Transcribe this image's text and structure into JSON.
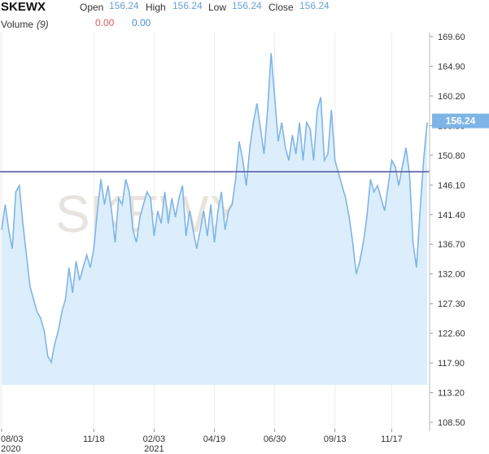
{
  "legend": {
    "symbol": "SKEWX",
    "open_label": "Open",
    "open": "156.24",
    "high_label": "High",
    "high": "156.24",
    "low_label": "Low",
    "low": "156.24",
    "close_label": "Close",
    "close": "156.24",
    "volume_label": "Volume",
    "volume_period": "(9)",
    "volume_value_1": "0.00",
    "volume_value_2": "0.00"
  },
  "watermark": "SKEWX",
  "colors": {
    "line": "#7fb5e6",
    "area": "#dceefc",
    "reference_line": "#5b5ea6",
    "price_tag": "#7fb5e6",
    "volume_red": "#e05a5a",
    "volume_blue": "#4a8fd8"
  },
  "chart_data": {
    "type": "area",
    "ylim": [
      106.0,
      172.0
    ],
    "yticks": [
      "169.60",
      "164.90",
      "160.20",
      "155.50",
      "150.80",
      "146.10",
      "141.40",
      "136.70",
      "132.00",
      "127.30",
      "122.60",
      "117.90",
      "113.20",
      "108.50"
    ],
    "xticks": [
      {
        "label": "08/03",
        "sub": "2020",
        "x": 0
      },
      {
        "label": "11/18",
        "sub": "",
        "x": 26
      },
      {
        "label": "02/03",
        "sub": "2021",
        "x": 43
      },
      {
        "label": "04/19",
        "sub": "",
        "x": 60
      },
      {
        "label": "06/30",
        "sub": "",
        "x": 77
      },
      {
        "label": "09/13",
        "sub": "",
        "x": 94
      },
      {
        "label": "11/17",
        "sub": "",
        "x": 110
      }
    ],
    "reference_value": 148.2,
    "last_value": "156.24",
    "series": [
      {
        "values": [
          139,
          143,
          139,
          136,
          145,
          146,
          140,
          135,
          130,
          128,
          126,
          125,
          123,
          119,
          118,
          121,
          123,
          126,
          128,
          133,
          129,
          134,
          131,
          133,
          135,
          133,
          136,
          142,
          147,
          143,
          146,
          142,
          137,
          144,
          143,
          147,
          145,
          139,
          137,
          141,
          143,
          145,
          144,
          138,
          142,
          140,
          145,
          140,
          144,
          141,
          144,
          146,
          138,
          142,
          139,
          136,
          139,
          142,
          138,
          143,
          137,
          142,
          145,
          139,
          142,
          143,
          147,
          153,
          150,
          146,
          152,
          156,
          159,
          155,
          151,
          158,
          167,
          160,
          153,
          156,
          152,
          150,
          154,
          151,
          156,
          150,
          156,
          155,
          150,
          158,
          160,
          150,
          151,
          158,
          150,
          148,
          146,
          144,
          141,
          137,
          132,
          134,
          137,
          141,
          147,
          145,
          146,
          144,
          142,
          146,
          150,
          149,
          146,
          149,
          152,
          148,
          137,
          133,
          142,
          150,
          156
        ]
      }
    ]
  }
}
